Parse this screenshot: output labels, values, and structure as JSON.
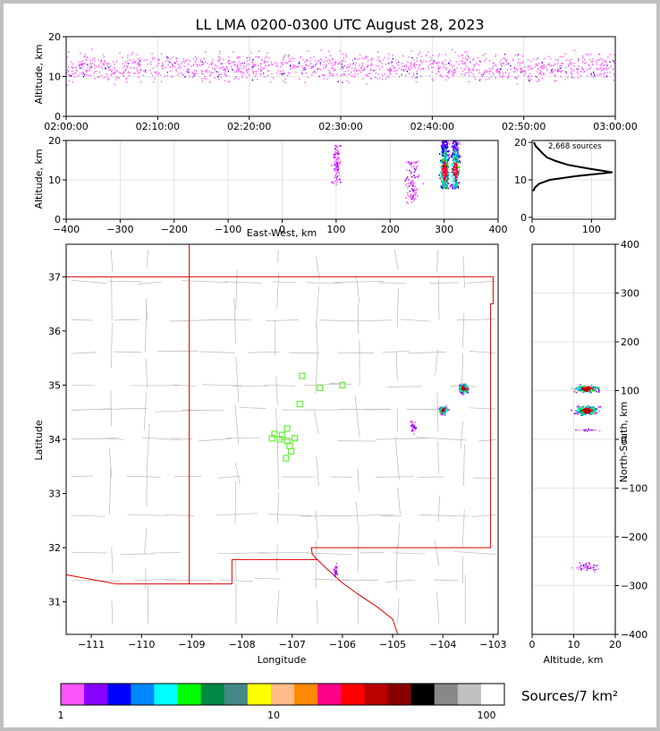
{
  "chart_data": {
    "type": "scatter",
    "title": "LL LMA 0200-0300 UTC August 28, 2023",
    "panels": {
      "time_height": {
        "ylabel": "Altitude, km",
        "ylim": [
          0,
          20
        ],
        "yticks": [
          "0",
          "10",
          "20"
        ],
        "xticks": [
          "02:00:00",
          "02:10:00",
          "02:20:00",
          "02:30:00",
          "02:40:00",
          "02:50:00",
          "03:00:00"
        ]
      },
      "ew_height": {
        "xlabel": "East-West, km",
        "ylabel": "Altitude, km",
        "xlim": [
          -400,
          400
        ],
        "ylim": [
          0,
          20
        ],
        "xticks": [
          "−400",
          "−300",
          "−200",
          "−100",
          "0",
          "100",
          "200",
          "300",
          "400"
        ],
        "yticks": [
          "0",
          "10",
          "20"
        ],
        "clusters_km": [
          {
            "x": 100,
            "z": [
              9,
              19
            ]
          },
          {
            "x": 300,
            "z": [
              8,
              20
            ]
          },
          {
            "x": 320,
            "z": [
              8,
              20
            ]
          },
          {
            "x": 240,
            "z": [
              4,
              15
            ]
          }
        ]
      },
      "histogram": {
        "annotation": "2,668 sources",
        "xticks": [
          "0",
          "100"
        ],
        "yticks": [
          "0",
          "10",
          "20"
        ],
        "profile": [
          [
            7,
            2
          ],
          [
            8,
            5
          ],
          [
            9,
            12
          ],
          [
            10,
            30
          ],
          [
            11,
            75
          ],
          [
            12,
            135
          ],
          [
            13,
            95
          ],
          [
            14,
            60
          ],
          [
            15,
            40
          ],
          [
            16,
            25
          ],
          [
            17,
            18
          ],
          [
            18,
            12
          ],
          [
            19,
            6
          ],
          [
            20,
            3
          ]
        ]
      },
      "map": {
        "xlabel": "Longitude",
        "ylabel": "Latitude",
        "xlim": [
          -111.5,
          -102.9
        ],
        "ylim": [
          30.4,
          37.6
        ],
        "xticks": [
          "−111",
          "−110",
          "−109",
          "−108",
          "−107",
          "−106",
          "−105",
          "−104",
          "−103"
        ],
        "yticks": [
          "31",
          "32",
          "33",
          "34",
          "35",
          "36",
          "37"
        ],
        "stations": [
          [
            -106.8,
            35.17
          ],
          [
            -106.45,
            34.95
          ],
          [
            -106.0,
            35.0
          ],
          [
            -106.85,
            34.65
          ],
          [
            -107.1,
            34.2
          ],
          [
            -107.2,
            34.08
          ],
          [
            -107.35,
            34.1
          ],
          [
            -107.4,
            34.02
          ],
          [
            -107.25,
            34.0
          ],
          [
            -107.1,
            33.97
          ],
          [
            -106.95,
            34.02
          ],
          [
            -107.05,
            33.88
          ],
          [
            -107.02,
            33.78
          ],
          [
            -107.12,
            33.65
          ]
        ]
      },
      "ns_height": {
        "xlabel": "Altitude, km",
        "ylabel": "North-South, km",
        "xlim": [
          0,
          20
        ],
        "ylim": [
          -400,
          400
        ],
        "xticks": [
          "0",
          "10",
          "20"
        ],
        "yticks": [
          "−400",
          "−300",
          "−200",
          "−100",
          "0",
          "100",
          "200",
          "300",
          "400"
        ]
      }
    },
    "colorbar": {
      "label": "Sources/7 km²",
      "ticks": [
        "1",
        "10",
        "100"
      ],
      "colors": [
        "#ff55ff",
        "#8800ff",
        "#0000ff",
        "#0088ff",
        "#00ffff",
        "#00ff00",
        "#008844",
        "#448888",
        "#ffff00",
        "#ffbb88",
        "#ff8800",
        "#ff0088",
        "#ff0000",
        "#bb0000",
        "#880000",
        "#000000",
        "#888888",
        "#c0c0c0",
        "#ffffff"
      ]
    }
  }
}
